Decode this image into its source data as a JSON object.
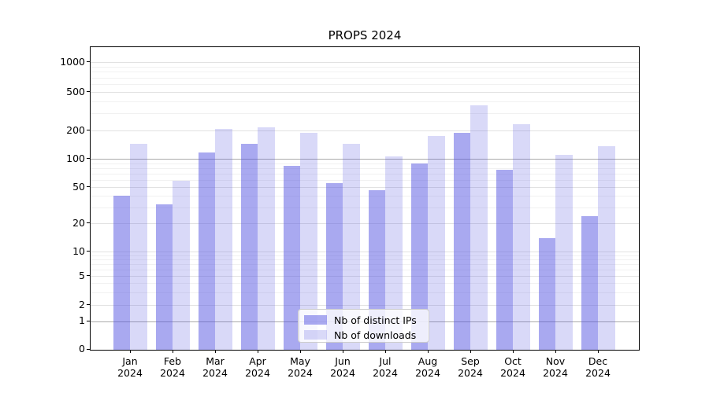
{
  "chart_title": "PROPS 2024",
  "legend": {
    "items": [
      {
        "label": "Nb of distinct IPs",
        "series_key": "distinct_ips"
      },
      {
        "label": "Nb of downloads",
        "series_key": "downloads"
      }
    ]
  },
  "colors": {
    "bar_base": "#5353E1",
    "bar_alpha_distinct_ips": 0.5,
    "bar_alpha_downloads": 0.22,
    "grid_major": "#e2e2e2",
    "grid_emphasis": "#ababab",
    "grid_minor": "#f1f1f1",
    "axis": "#000000"
  },
  "chart_data": {
    "type": "bar",
    "title": "PROPS 2024",
    "categories": [
      "Jan 2024",
      "Feb 2024",
      "Mar 2024",
      "Apr 2024",
      "May 2024",
      "Jun 2024",
      "Jul 2024",
      "Aug 2024",
      "Sep 2024",
      "Oct 2024",
      "Nov 2024",
      "Dec 2024"
    ],
    "series": [
      {
        "name": "Nb of distinct IPs",
        "values": [
          40,
          32,
          116,
          143,
          84,
          55,
          46,
          90,
          188,
          76,
          14,
          24
        ]
      },
      {
        "name": "Nb of downloads",
        "values": [
          145,
          58,
          209,
          215,
          190,
          144,
          107,
          174,
          365,
          232,
          110,
          136
        ]
      }
    ],
    "yscale": "quasi-log",
    "y_ticks": [
      0,
      1,
      2,
      5,
      10,
      20,
      50,
      100,
      200,
      500,
      1000
    ],
    "y_emphasized_ticks": [
      1,
      100
    ],
    "ylim": [
      0,
      1500
    ],
    "grid": true,
    "legend_position": "lower center",
    "xlabel": "",
    "ylabel": ""
  }
}
